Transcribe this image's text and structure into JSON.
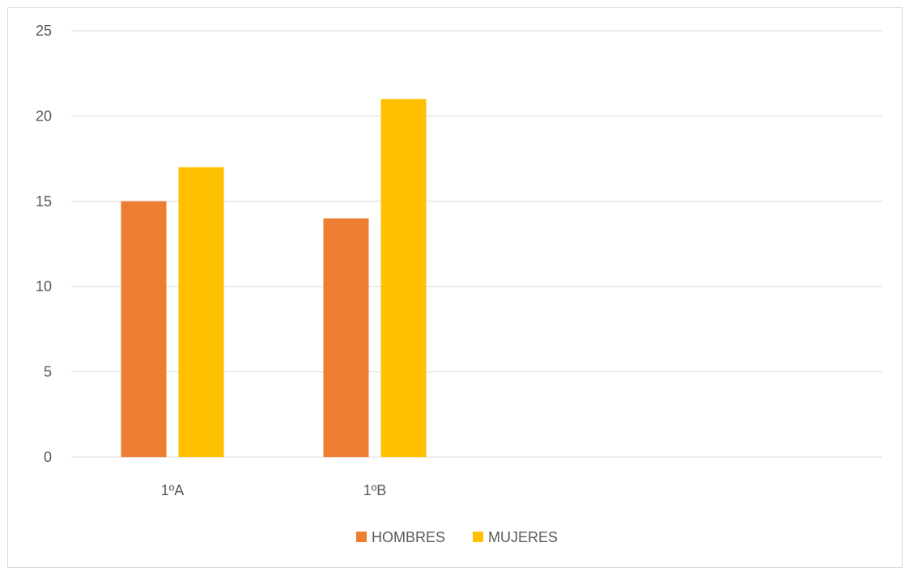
{
  "chart_data": {
    "type": "bar",
    "title": "",
    "xlabel": "",
    "ylabel": "",
    "categories": [
      "1ºA",
      "1ºB"
    ],
    "series": [
      {
        "name": "HOMBRES",
        "values": [
          15,
          14
        ],
        "color": "#ED7D31"
      },
      {
        "name": "MUJERES",
        "values": [
          17,
          21
        ],
        "color": "#FFC000"
      }
    ],
    "ylim": [
      0,
      25
    ],
    "yticks": [
      "0",
      "5",
      "10",
      "15",
      "20",
      "25"
    ],
    "grid": true,
    "legend_position": "bottom-center",
    "colors": {
      "gridline": "#d9d9d9",
      "frame_border": "#d9d9d9",
      "text": "#595959"
    }
  }
}
